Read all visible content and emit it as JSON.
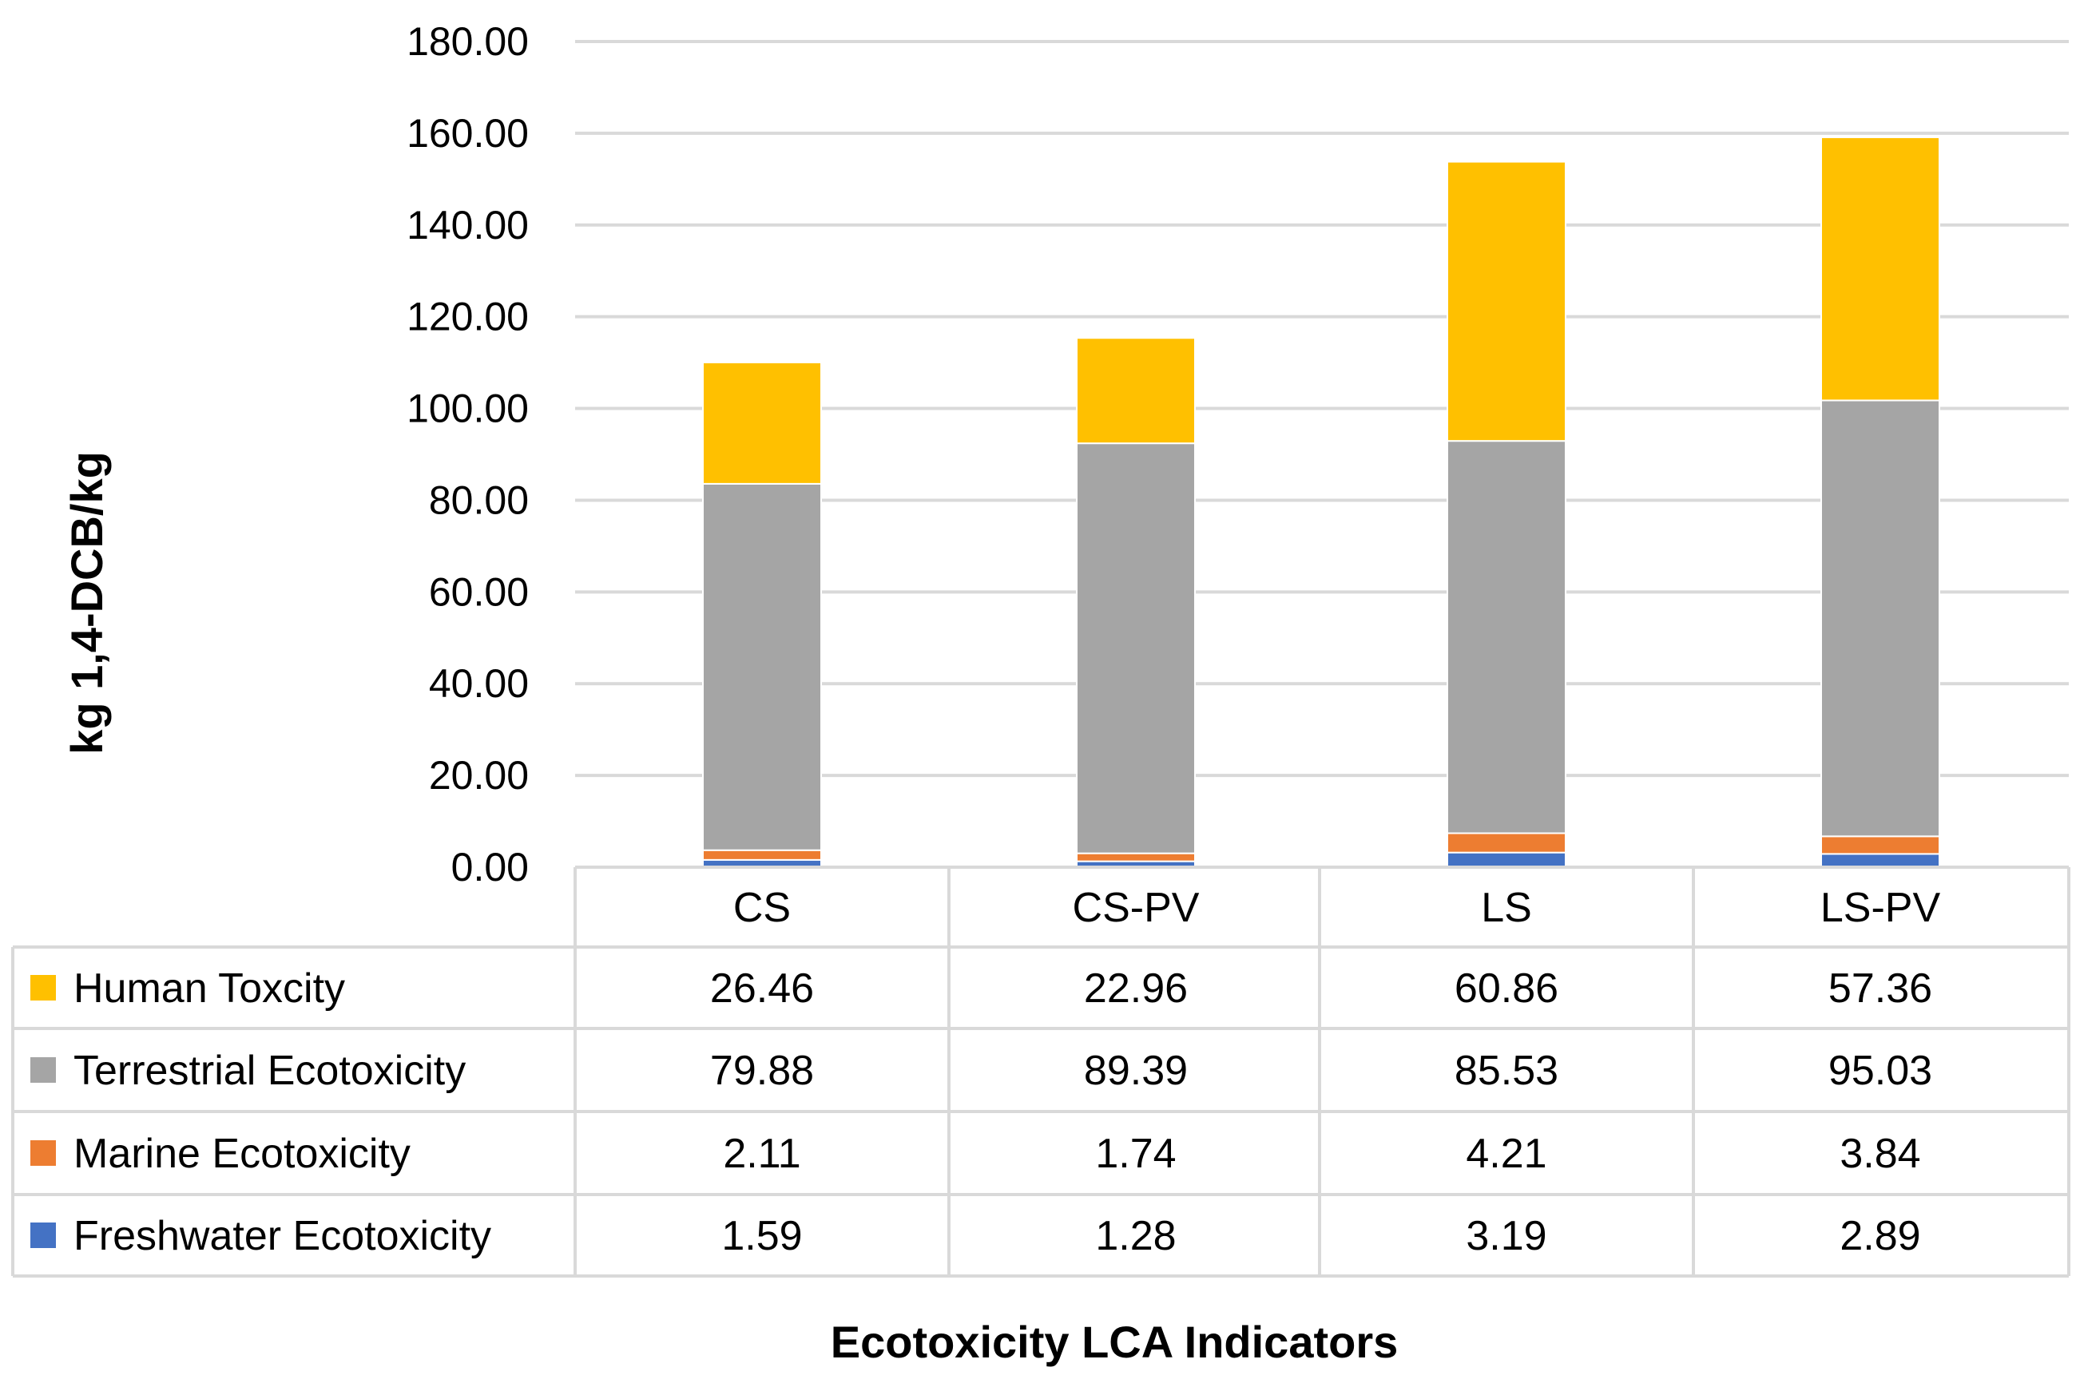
{
  "chart_data": {
    "type": "bar",
    "stacked": true,
    "title": "",
    "xlabel": "Ecotoxicity LCA Indicators",
    "ylabel": "kg 1,4-DCB/kg",
    "ylim": [
      0,
      180
    ],
    "yticks": [
      "0.00",
      "20.00",
      "40.00",
      "60.00",
      "80.00",
      "100.00",
      "120.00",
      "140.00",
      "160.00",
      "180.00"
    ],
    "grid": true,
    "legend": "data-table",
    "categories": [
      "CS",
      "CS-PV",
      "LS",
      "LS-PV"
    ],
    "series": [
      {
        "name": "Freshwater Ecotoxicity",
        "color": "#4472C4",
        "values": [
          1.59,
          1.28,
          3.19,
          2.89
        ],
        "labels": [
          "1.59",
          "1.28",
          "3.19",
          "2.89"
        ]
      },
      {
        "name": "Marine Ecotoxicity",
        "color": "#ED7D31",
        "values": [
          2.11,
          1.74,
          4.21,
          3.84
        ],
        "labels": [
          "2.11",
          "1.74",
          "4.21",
          "3.84"
        ]
      },
      {
        "name": "Terrestrial Ecotoxicity",
        "color": "#A5A5A5",
        "values": [
          79.88,
          89.39,
          85.53,
          95.03
        ],
        "labels": [
          "79.88",
          "89.39",
          "85.53",
          "95.03"
        ]
      },
      {
        "name": "Human Toxcity",
        "color": "#FFC000",
        "values": [
          26.46,
          22.96,
          60.86,
          57.36
        ],
        "labels": [
          "26.46",
          "22.96",
          "60.86",
          "57.36"
        ]
      }
    ],
    "table_row_order": [
      "Human Toxcity",
      "Terrestrial Ecotoxicity",
      "Marine Ecotoxicity",
      "Freshwater Ecotoxicity"
    ]
  }
}
